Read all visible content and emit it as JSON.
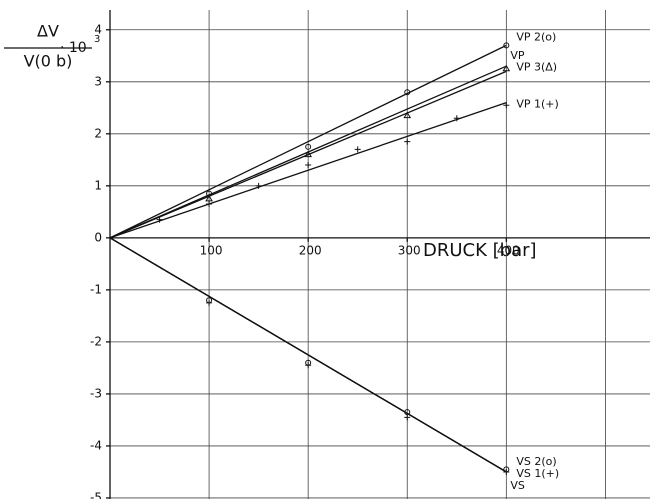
{
  "chart_data": {
    "type": "line",
    "y_label": {
      "numerator": "ΔV",
      "denominator": "V(0 b)",
      "factor": "· 10",
      "exponent": "3"
    },
    "x_label": "DRUCK [bar]",
    "xlim": [
      0,
      545
    ],
    "ylim": [
      -5.02,
      4.38
    ],
    "xticks": [
      100,
      200,
      300,
      400
    ],
    "x_grid_lines": [
      100,
      200,
      300,
      400,
      500
    ],
    "yticks": [
      4,
      3,
      2,
      1,
      0,
      -1,
      -2,
      -3,
      -4,
      -5
    ],
    "grid": true,
    "lines": [
      {
        "name": "VP 2(o)",
        "x": [
          0,
          400
        ],
        "values": [
          0,
          3.7
        ]
      },
      {
        "name": "VP",
        "x": [
          0,
          400
        ],
        "values": [
          0,
          3.3
        ]
      },
      {
        "name": "VP 3(Δ)",
        "x": [
          0,
          400
        ],
        "values": [
          0,
          3.2
        ]
      },
      {
        "name": "VP 1(+)",
        "x": [
          0,
          400
        ],
        "values": [
          0,
          2.6
        ]
      },
      {
        "name": "VS 2(o)",
        "x": [
          0,
          400
        ],
        "values": [
          0,
          -4.5
        ]
      },
      {
        "name": "VS 1(+)",
        "x": [
          0,
          400
        ],
        "values": [
          0,
          -4.5
        ]
      },
      {
        "name": "VS",
        "x": [
          0,
          400
        ],
        "values": [
          0,
          -4.5
        ]
      }
    ],
    "points": [
      {
        "marker": "o",
        "x": [
          100,
          200,
          300,
          400
        ],
        "values": [
          0.85,
          1.75,
          2.8,
          3.7
        ]
      },
      {
        "marker": "^",
        "x": [
          100,
          200,
          300,
          400
        ],
        "values": [
          0.75,
          1.6,
          2.35,
          3.25
        ]
      },
      {
        "marker": "+",
        "x": [
          50,
          100,
          150,
          200,
          250,
          300,
          350,
          400
        ],
        "values": [
          0.35,
          0.65,
          1.0,
          1.4,
          1.7,
          1.85,
          2.3,
          2.55
        ]
      },
      {
        "marker": "o",
        "x": [
          100,
          200,
          300,
          400
        ],
        "values": [
          -1.2,
          -2.4,
          -3.35,
          -4.45
        ]
      },
      {
        "marker": "+",
        "x": [
          100,
          200,
          300,
          400
        ],
        "values": [
          -1.25,
          -2.45,
          -3.45,
          -4.5
        ]
      }
    ]
  }
}
